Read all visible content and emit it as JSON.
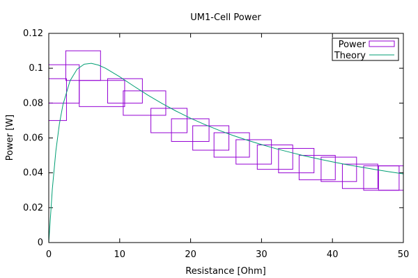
{
  "chart_data": {
    "type": "scatter",
    "title": "UM1-Cell Power",
    "xlabel": "Resistance [Ohm]",
    "ylabel": "Power [W]",
    "xlim": [
      0,
      50
    ],
    "ylim": [
      0,
      0.12
    ],
    "xticks": [
      0,
      10,
      20,
      30,
      40,
      50
    ],
    "yticks": [
      0,
      0.02,
      0.04,
      0.06,
      0.08,
      0.1,
      0.12
    ],
    "xtick_labels": [
      "0",
      "10",
      "20",
      "30",
      "40",
      "50"
    ],
    "ytick_labels": [
      "0",
      "0.02",
      "0.04",
      "0.06",
      "0.08",
      "0.1",
      "0.12"
    ],
    "grid": false,
    "legend_position": "top-right",
    "series": [
      {
        "name": "Power",
        "kind": "error-boxes",
        "color": "#9400d3",
        "boxes": [
          {
            "x": [
              0,
              2.5
            ],
            "y": [
              0.07,
              0.094
            ]
          },
          {
            "x": [
              0,
              4.3
            ],
            "y": [
              0.08,
              0.102
            ]
          },
          {
            "x": [
              2.4,
              7.3
            ],
            "y": [
              0.093,
              0.11
            ]
          },
          {
            "x": [
              4.3,
              10.7
            ],
            "y": [
              0.078,
              0.093
            ]
          },
          {
            "x": [
              8.3,
              13.2
            ],
            "y": [
              0.08,
              0.094
            ]
          },
          {
            "x": [
              10.5,
              16.5
            ],
            "y": [
              0.073,
              0.087
            ]
          },
          {
            "x": [
              14.4,
              19.5
            ],
            "y": [
              0.063,
              0.077
            ]
          },
          {
            "x": [
              17.3,
              22.6
            ],
            "y": [
              0.058,
              0.071
            ]
          },
          {
            "x": [
              20.3,
              25.4
            ],
            "y": [
              0.053,
              0.067
            ]
          },
          {
            "x": [
              23.3,
              28.3
            ],
            "y": [
              0.049,
              0.063
            ]
          },
          {
            "x": [
              26.4,
              31.4
            ],
            "y": [
              0.045,
              0.059
            ]
          },
          {
            "x": [
              29.4,
              34.4
            ],
            "y": [
              0.042,
              0.056
            ]
          },
          {
            "x": [
              32.4,
              37.4
            ],
            "y": [
              0.04,
              0.054
            ]
          },
          {
            "x": [
              35.3,
              40.4
            ],
            "y": [
              0.036,
              0.05
            ]
          },
          {
            "x": [
              38.4,
              43.4
            ],
            "y": [
              0.035,
              0.049
            ]
          },
          {
            "x": [
              41.4,
              46.4
            ],
            "y": [
              0.031,
              0.045
            ]
          },
          {
            "x": [
              44.4,
              49.4
            ],
            "y": [
              0.03,
              0.044
            ]
          },
          {
            "x": [
              46.5,
              50.0
            ],
            "y": [
              0.03,
              0.044
            ]
          }
        ]
      },
      {
        "name": "Theory",
        "kind": "line",
        "color": "#009e73",
        "x": [
          0,
          0.5,
          1,
          1.5,
          2,
          3,
          4,
          5,
          6,
          7,
          8,
          10,
          12,
          14,
          16,
          18,
          20,
          22,
          24,
          26,
          28,
          30,
          32,
          34,
          36,
          38,
          40,
          42,
          44,
          46,
          48,
          50
        ],
        "y": [
          0,
          0.0306,
          0.0525,
          0.0681,
          0.0791,
          0.0928,
          0.0995,
          0.1023,
          0.1028,
          0.1018,
          0.1,
          0.0951,
          0.0897,
          0.0845,
          0.0797,
          0.0753,
          0.0713,
          0.0677,
          0.0644,
          0.0614,
          0.0587,
          0.0562,
          0.0539,
          0.0518,
          0.0498,
          0.048,
          0.0463,
          0.0447,
          0.0433,
          0.0419,
          0.0406,
          0.0394
        ]
      }
    ]
  }
}
